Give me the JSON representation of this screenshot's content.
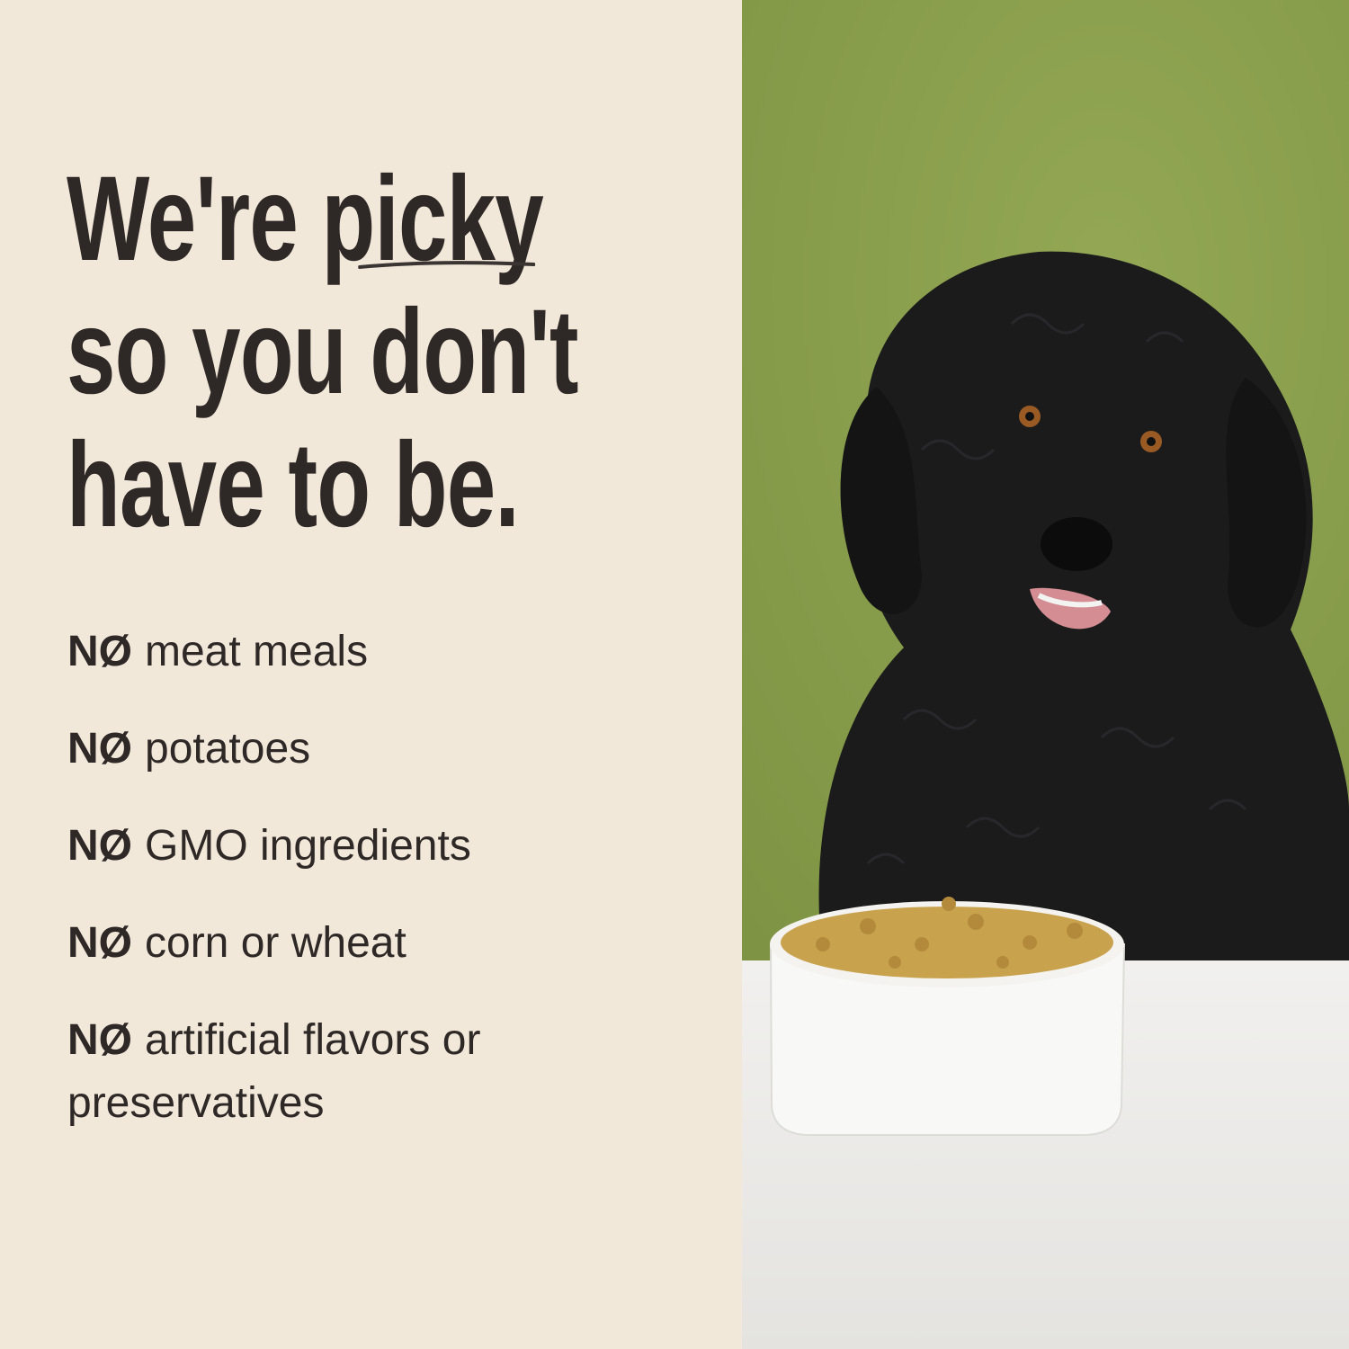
{
  "headline": {
    "line1_prefix": "We're ",
    "line1_emphasis": "picky",
    "line2": "so you don't",
    "line3": "have to be."
  },
  "list": {
    "prefix": "NØ",
    "items": [
      "meat meals",
      "potatoes",
      "GMO ingredients",
      "corn or wheat",
      "artificial flavors or preservatives"
    ]
  },
  "colors": {
    "panel_background": "#f2e8da",
    "text": "#2e2826",
    "wall_green": "#8a9f4c",
    "table_white": "#ecebe8",
    "dog_fur": "#1b1b1c",
    "kibble": "#c9a24e"
  },
  "photo": {
    "subject": "black-doodle-dog-with-food-bowl"
  }
}
